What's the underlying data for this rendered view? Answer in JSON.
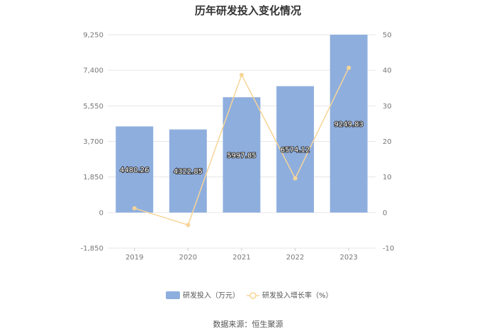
{
  "chart_data": {
    "type": "bar",
    "title": "历年研发投入变化情况",
    "categories": [
      "2019",
      "2020",
      "2021",
      "2022",
      "2023"
    ],
    "series": [
      {
        "name": "研发投入（万元）",
        "type": "bar",
        "axis": "left",
        "color": "#8eaede",
        "values": [
          4480.26,
          4322.85,
          5997.85,
          6574.12,
          9249.83
        ],
        "labels": [
          "4480.26",
          "4322.85",
          "5997.85",
          "6574.12",
          "9249.83"
        ]
      },
      {
        "name": "研发投入增长率（%）",
        "type": "line",
        "axis": "right",
        "color": "#f7d597",
        "values": [
          1.2,
          -3.5,
          38.7,
          9.6,
          40.7
        ]
      }
    ],
    "y_left": {
      "ylim": [
        -1850,
        9250
      ],
      "ticks": [
        "9,250",
        "7,400",
        "5,550",
        "3,700",
        "1,850",
        "0",
        "-1,850"
      ],
      "tick_values": [
        9250,
        7400,
        5550,
        3700,
        1850,
        0,
        -1850
      ]
    },
    "y_right": {
      "ylim": [
        -10,
        50
      ],
      "ticks": [
        "50",
        "40",
        "30",
        "20",
        "10",
        "0",
        "-10"
      ],
      "tick_values": [
        50,
        40,
        30,
        20,
        10,
        0,
        -10
      ]
    },
    "grid": true,
    "legend_position": "bottom",
    "source": "数据来源：恒生聚源"
  }
}
